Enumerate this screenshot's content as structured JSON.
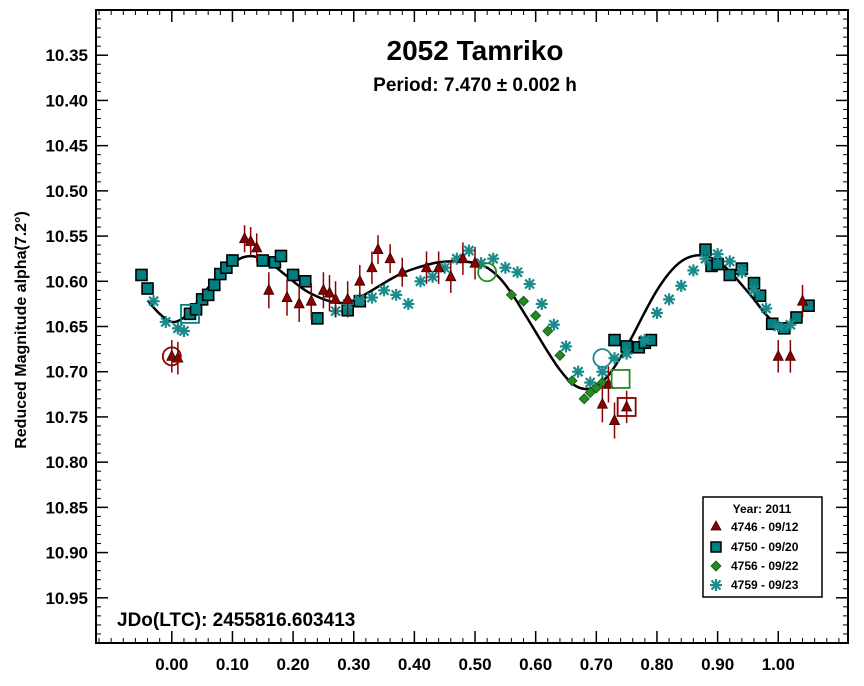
{
  "chart_data": {
    "type": "scatter",
    "title": "2052 Tamriko",
    "subtitle": "Period: 7.470 ± 0.002 h",
    "xlabel": "",
    "ylabel": "Reduced Magnitude alpha(7.2°)",
    "annotation": "JDo(LTC): 2455816.603413",
    "xlim": [
      -0.125,
      1.115
    ],
    "ylim": [
      10.3,
      11.0
    ],
    "y_inverted": true,
    "grid": false,
    "x_ticks": [
      {
        "v": 0.0,
        "label": "0.00"
      },
      {
        "v": 0.1,
        "label": "0.10"
      },
      {
        "v": 0.2,
        "label": "0.20"
      },
      {
        "v": 0.3,
        "label": "0.30"
      },
      {
        "v": 0.4,
        "label": "0.40"
      },
      {
        "v": 0.5,
        "label": "0.50"
      },
      {
        "v": 0.6,
        "label": "0.60"
      },
      {
        "v": 0.7,
        "label": "0.70"
      },
      {
        "v": 0.8,
        "label": "0.80"
      },
      {
        "v": 0.9,
        "label": "0.90"
      },
      {
        "v": 1.0,
        "label": "1.00"
      }
    ],
    "y_ticks": [
      {
        "v": 10.35,
        "label": "10.35"
      },
      {
        "v": 10.4,
        "label": "10.40"
      },
      {
        "v": 10.45,
        "label": "10.45"
      },
      {
        "v": 10.5,
        "label": "10.50"
      },
      {
        "v": 10.55,
        "label": "10.55"
      },
      {
        "v": 10.6,
        "label": "10.60"
      },
      {
        "v": 10.65,
        "label": "10.65"
      },
      {
        "v": 10.7,
        "label": "10.70"
      },
      {
        "v": 10.75,
        "label": "10.75"
      },
      {
        "v": 10.8,
        "label": "10.80"
      },
      {
        "v": 10.85,
        "label": "10.85"
      },
      {
        "v": 10.9,
        "label": "10.90"
      },
      {
        "v": 10.95,
        "label": "10.95"
      }
    ],
    "legend": {
      "position": "bottom-right",
      "title": "Year: 2011",
      "entries": [
        {
          "label": "4746 - 09/12",
          "marker": "triangle",
          "color": "#8b0000"
        },
        {
          "label": "4750 - 09/20",
          "marker": "square",
          "color": "#008080"
        },
        {
          "label": "4756 - 09/22",
          "marker": "diamond",
          "color": "#228b22"
        },
        {
          "label": "4759 - 09/23",
          "marker": "asterisk",
          "color": "#1a8a8a"
        }
      ]
    },
    "fit_curve": {
      "x": [
        -0.04,
        -0.02,
        0.0,
        0.02,
        0.04,
        0.06,
        0.08,
        0.1,
        0.12,
        0.14,
        0.16,
        0.18,
        0.2,
        0.22,
        0.24,
        0.26,
        0.28,
        0.3,
        0.32,
        0.34,
        0.36,
        0.38,
        0.4,
        0.42,
        0.44,
        0.46,
        0.48,
        0.5,
        0.52,
        0.54,
        0.56,
        0.58,
        0.6,
        0.62,
        0.64,
        0.66,
        0.68,
        0.7,
        0.72,
        0.74,
        0.76,
        0.78,
        0.8,
        0.82,
        0.84,
        0.86,
        0.88,
        0.9,
        0.92,
        0.94,
        0.96,
        0.98,
        1.0,
        1.02,
        1.04
      ],
      "y": [
        10.621,
        10.636,
        10.645,
        10.64,
        10.625,
        10.607,
        10.592,
        10.58,
        10.573,
        10.573,
        10.579,
        10.589,
        10.6,
        10.61,
        10.617,
        10.622,
        10.624,
        10.621,
        10.614,
        10.606,
        10.598,
        10.591,
        10.586,
        10.582,
        10.579,
        10.578,
        10.578,
        10.58,
        10.585,
        10.596,
        10.613,
        10.634,
        10.656,
        10.678,
        10.698,
        10.713,
        10.719,
        10.716,
        10.704,
        10.684,
        10.66,
        10.634,
        10.61,
        10.591,
        10.578,
        10.572,
        10.572,
        10.578,
        10.589,
        10.604,
        10.62,
        10.637,
        10.648,
        10.648,
        10.636
      ]
    },
    "series": [
      {
        "name": "4746 - 09/12",
        "marker": "triangle",
        "x": [
          0.0,
          0.01,
          0.12,
          0.13,
          0.14,
          0.16,
          0.19,
          0.21,
          0.23,
          0.25,
          0.26,
          0.27,
          0.29,
          0.31,
          0.33,
          0.34,
          0.36,
          0.38,
          0.42,
          0.44,
          0.46,
          0.48,
          0.5,
          0.71,
          0.72,
          0.73,
          0.75,
          1.0,
          1.02,
          1.04
        ],
        "y": [
          10.683,
          10.685,
          10.553,
          10.556,
          10.563,
          10.61,
          10.618,
          10.625,
          10.622,
          10.61,
          10.613,
          10.62,
          10.62,
          10.6,
          10.585,
          10.565,
          10.575,
          10.59,
          10.585,
          10.585,
          10.595,
          10.575,
          10.58,
          10.736,
          10.714,
          10.754,
          10.739,
          10.683,
          10.683,
          10.622
        ],
        "err": [
          0.018,
          0.018,
          0.015,
          0.016,
          0.016,
          0.02,
          0.02,
          0.02,
          0.02,
          0.02,
          0.02,
          0.02,
          0.02,
          0.018,
          0.018,
          0.016,
          0.016,
          0.016,
          0.018,
          0.018,
          0.018,
          0.018,
          0.018,
          0.02,
          0.02,
          0.02,
          0.018,
          0.018,
          0.018,
          0.018
        ]
      },
      {
        "name": "4750 - 09/20",
        "marker": "square",
        "x": [
          -0.05,
          -0.04,
          0.03,
          0.04,
          0.05,
          0.06,
          0.07,
          0.08,
          0.09,
          0.1,
          0.15,
          0.17,
          0.18,
          0.2,
          0.22,
          0.24,
          0.29,
          0.31,
          0.73,
          0.75,
          0.77,
          0.78,
          0.79,
          0.88,
          0.89,
          0.9,
          0.92,
          0.94,
          0.96,
          0.97,
          0.99,
          1.01,
          1.03,
          1.05
        ],
        "y": [
          10.593,
          10.608,
          10.636,
          10.631,
          10.62,
          10.615,
          10.604,
          10.592,
          10.585,
          10.577,
          10.577,
          10.579,
          10.572,
          10.593,
          10.6,
          10.641,
          10.632,
          10.622,
          10.665,
          10.672,
          10.673,
          10.668,
          10.665,
          10.565,
          10.583,
          10.581,
          10.593,
          10.586,
          10.602,
          10.616,
          10.647,
          10.652,
          10.64,
          10.627
        ]
      },
      {
        "name": "4756 - 09/22",
        "marker": "diamond",
        "x": [
          0.56,
          0.58,
          0.6,
          0.62,
          0.64,
          0.66,
          0.68,
          0.69,
          0.7,
          0.71
        ],
        "y": [
          10.615,
          10.622,
          10.638,
          10.655,
          10.682,
          10.71,
          10.73,
          10.723,
          10.718,
          10.712
        ]
      },
      {
        "name": "4759 - 09/23",
        "marker": "asterisk",
        "x": [
          -0.03,
          -0.01,
          0.01,
          0.02,
          0.27,
          0.29,
          0.31,
          0.33,
          0.35,
          0.37,
          0.39,
          0.41,
          0.43,
          0.45,
          0.47,
          0.49,
          0.51,
          0.53,
          0.55,
          0.57,
          0.59,
          0.61,
          0.63,
          0.65,
          0.67,
          0.69,
          0.71,
          0.73,
          0.75,
          0.78,
          0.8,
          0.82,
          0.84,
          0.86,
          0.88,
          0.9,
          0.92,
          0.94,
          0.96,
          0.98,
          1.0,
          1.02
        ],
        "y": [
          10.622,
          10.645,
          10.652,
          10.655,
          10.633,
          10.625,
          10.62,
          10.618,
          10.61,
          10.615,
          10.625,
          10.6,
          10.595,
          10.585,
          10.575,
          10.566,
          10.58,
          10.575,
          10.585,
          10.59,
          10.603,
          10.625,
          10.648,
          10.672,
          10.7,
          10.712,
          10.7,
          10.685,
          10.68,
          10.665,
          10.635,
          10.62,
          10.605,
          10.588,
          10.575,
          10.57,
          10.578,
          10.59,
          10.61,
          10.63,
          10.65,
          10.648
        ]
      }
    ],
    "highlighted_points": [
      {
        "series": "4746 - 09/12",
        "x": 0.0,
        "y": 10.683,
        "shape": "circle"
      },
      {
        "series": "4746 - 09/12",
        "x": 0.75,
        "y": 10.739,
        "shape": "square"
      },
      {
        "series": "4750 - 09/20",
        "x": 0.03,
        "y": 10.636,
        "shape": "square"
      },
      {
        "series": "4756 - 09/22",
        "x": 0.52,
        "y": 10.59,
        "shape": "circle"
      },
      {
        "series": "4756 - 09/22",
        "x": 0.74,
        "y": 10.708,
        "shape": "square"
      },
      {
        "series": "4759 - 09/23",
        "x": 0.71,
        "y": 10.685,
        "shape": "circle"
      }
    ]
  }
}
